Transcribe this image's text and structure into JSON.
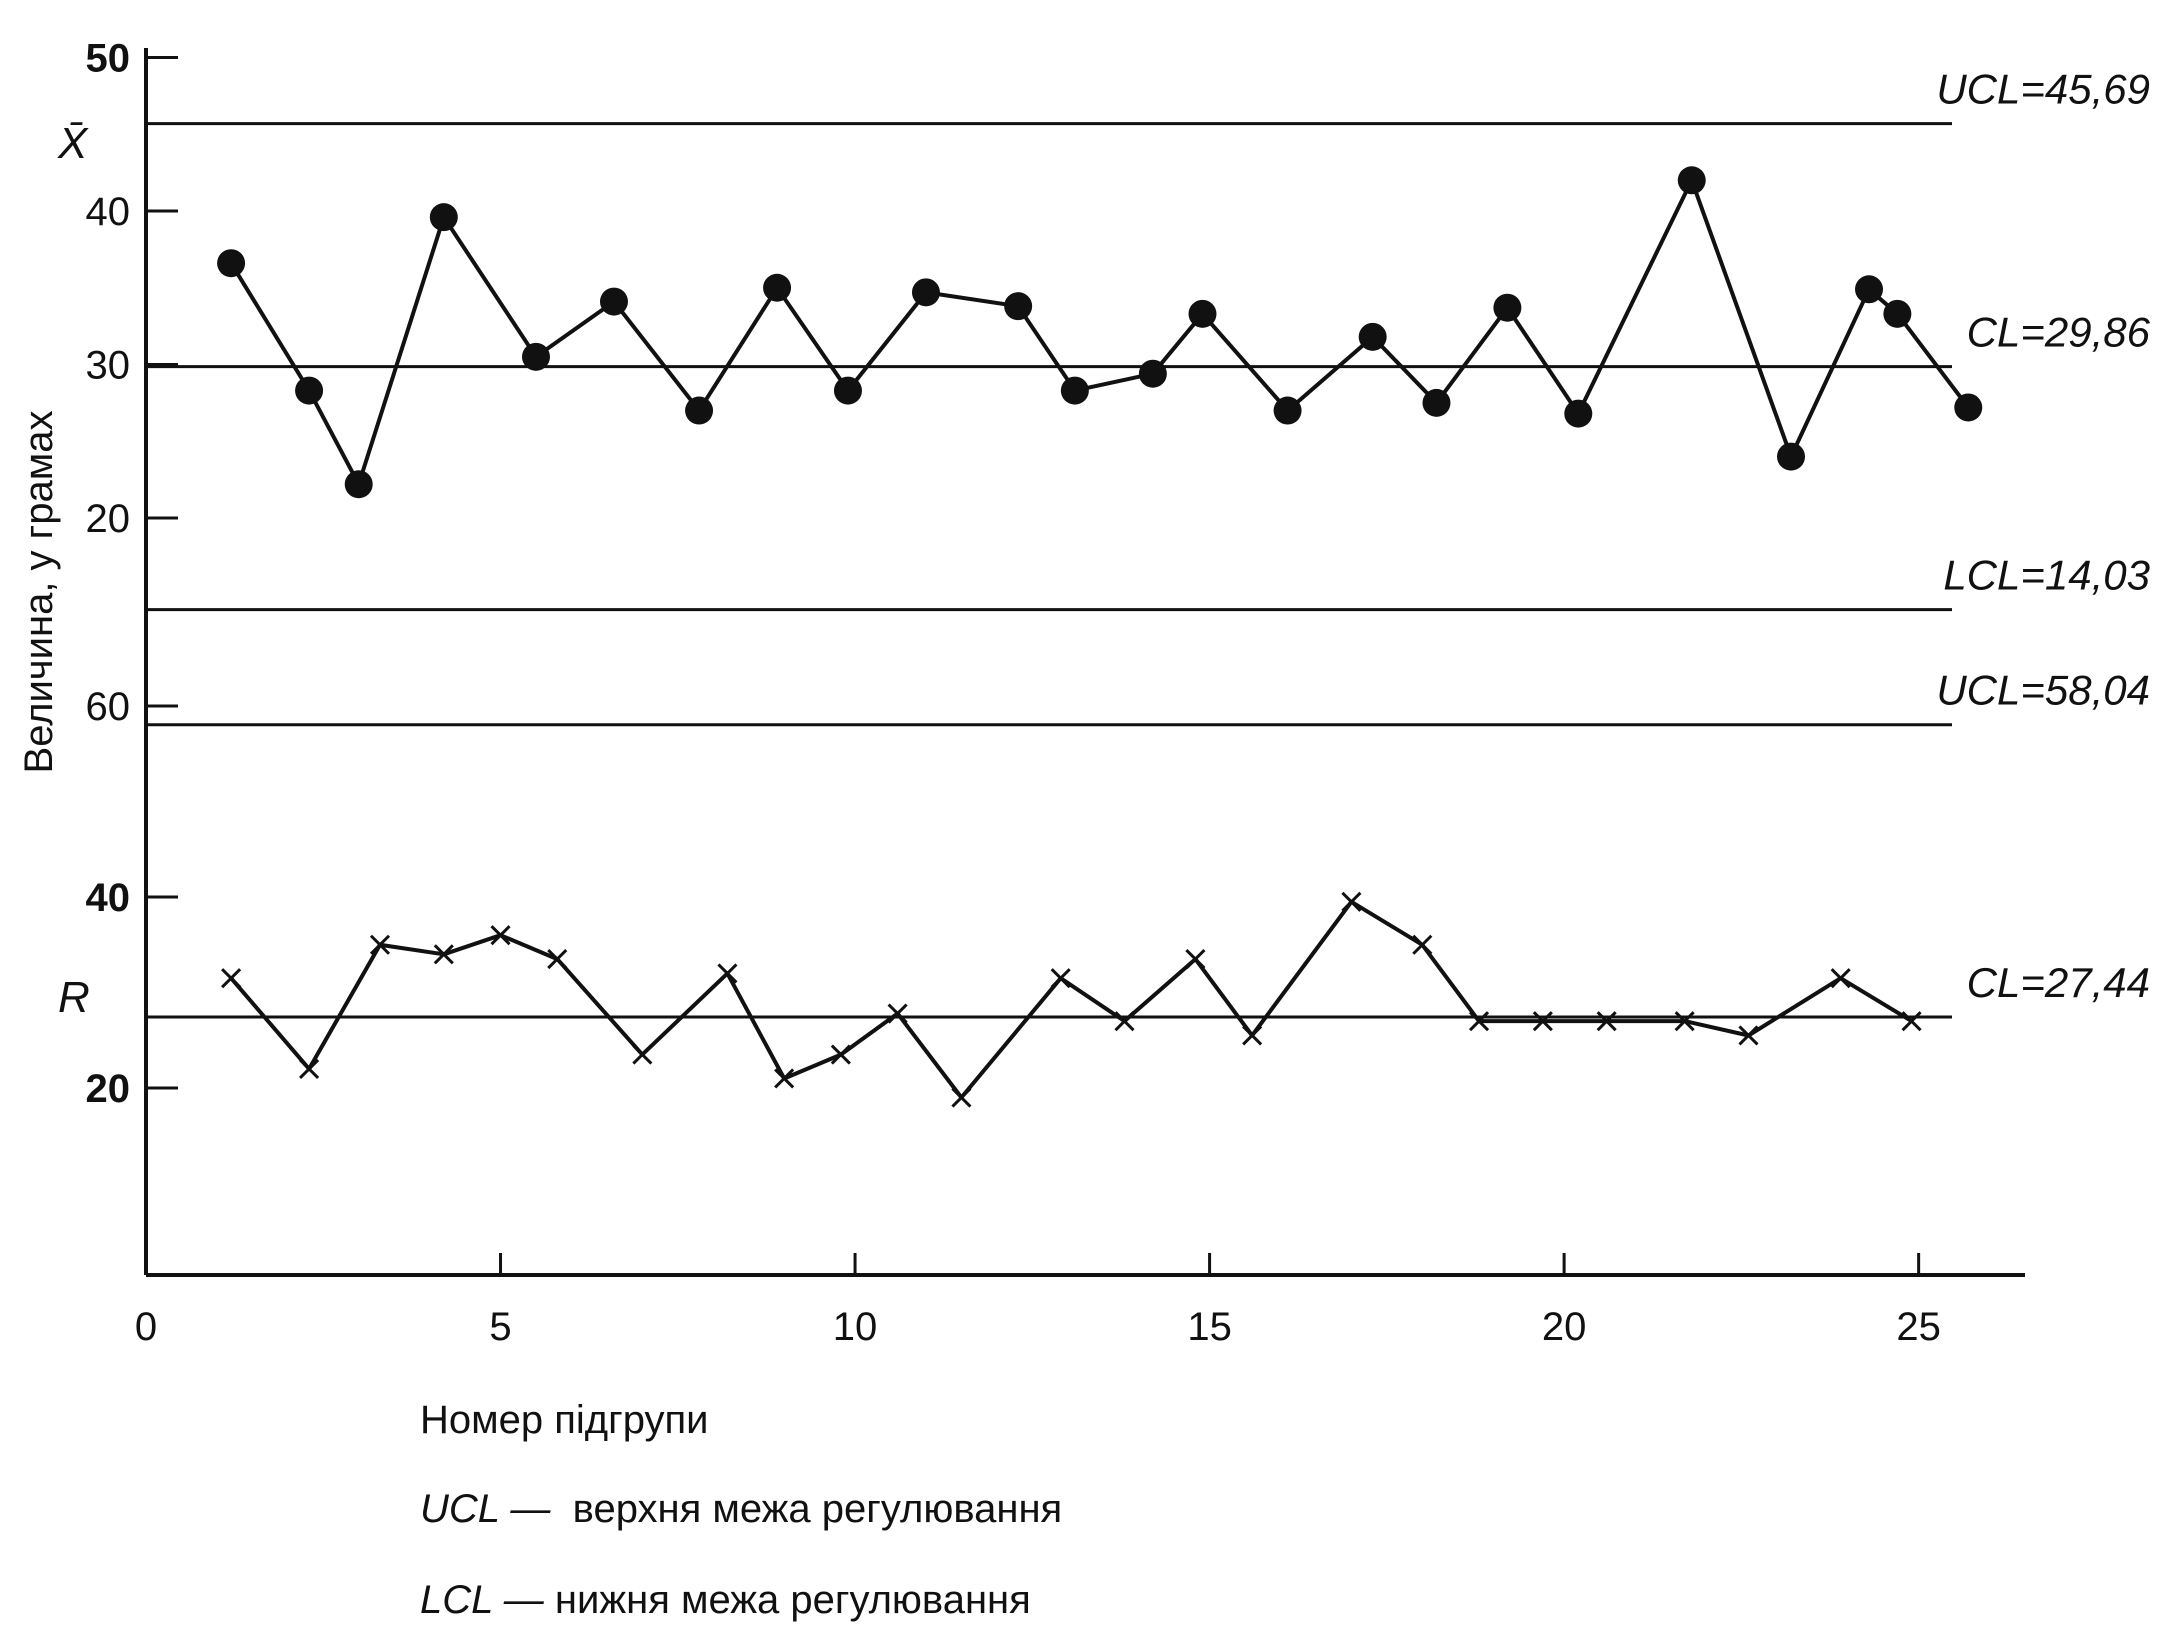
{
  "chart_data": [
    {
      "type": "line",
      "name": "xbar-chart",
      "ylabel_symbol": "X̄",
      "ylim": [
        0,
        50
      ],
      "yticks": [
        20,
        30,
        40,
        50
      ],
      "x": [
        1.2,
        2.3,
        3.0,
        4.2,
        5.5,
        6.6,
        7.8,
        8.9,
        9.9,
        11.0,
        12.3,
        13.1,
        14.2,
        14.9,
        16.1,
        17.3,
        18.2,
        19.2,
        20.2,
        21.8,
        23.2,
        24.3,
        24.7,
        25.7
      ],
      "y": [
        36.6,
        28.3,
        22.2,
        39.6,
        30.5,
        34.1,
        27.0,
        35.0,
        28.3,
        34.7,
        33.8,
        28.3,
        29.4,
        33.3,
        27.0,
        31.8,
        27.5,
        33.7,
        26.8,
        42.0,
        24.0,
        34.9,
        33.3,
        27.2
      ],
      "marker": "filled-circle",
      "reference_lines": [
        {
          "label": "UCL=45,69",
          "value": 45.69
        },
        {
          "label": "CL=29,86",
          "value": 29.86
        },
        {
          "label": "LCL=14,03",
          "value": 14.03
        }
      ]
    },
    {
      "type": "line",
      "name": "r-chart",
      "ylabel_symbol": "R",
      "yticks": [
        20,
        40,
        60
      ],
      "x": [
        1.2,
        2.3,
        3.3,
        4.2,
        5.0,
        5.8,
        7.0,
        8.2,
        9.0,
        9.8,
        10.6,
        11.5,
        12.9,
        13.8,
        14.8,
        15.6,
        17.0,
        18.0,
        18.8,
        19.7,
        20.6,
        21.7,
        22.6,
        23.9,
        24.9
      ],
      "y": [
        31.5,
        22.0,
        35.0,
        34.0,
        36.0,
        33.5,
        23.5,
        32.0,
        21.0,
        23.5,
        27.8,
        19.0,
        31.5,
        27.0,
        33.5,
        25.5,
        39.5,
        35.0,
        27.0,
        27.0,
        27.0,
        27.0,
        25.5,
        31.5,
        27.0
      ],
      "marker": "x",
      "reference_lines": [
        {
          "label": "UCL=58,04",
          "value": 58.04
        },
        {
          "label": "CL=27,44",
          "value": 27.44
        }
      ]
    }
  ],
  "axes": {
    "y_title": "Величина, у грамах",
    "x_title": "Номер підгрупи",
    "xlim": [
      0,
      26.5
    ],
    "xticks": [
      0,
      5,
      10,
      15,
      20,
      25
    ]
  },
  "legend": {
    "ucl_abbr": "UCL —",
    "ucl_text": "верхня межа регулювання",
    "lcl_abbr": "LCL —",
    "lcl_text": "нижня межа регулювання"
  },
  "colors": {
    "ink": "#111111",
    "background": "#ffffff"
  }
}
